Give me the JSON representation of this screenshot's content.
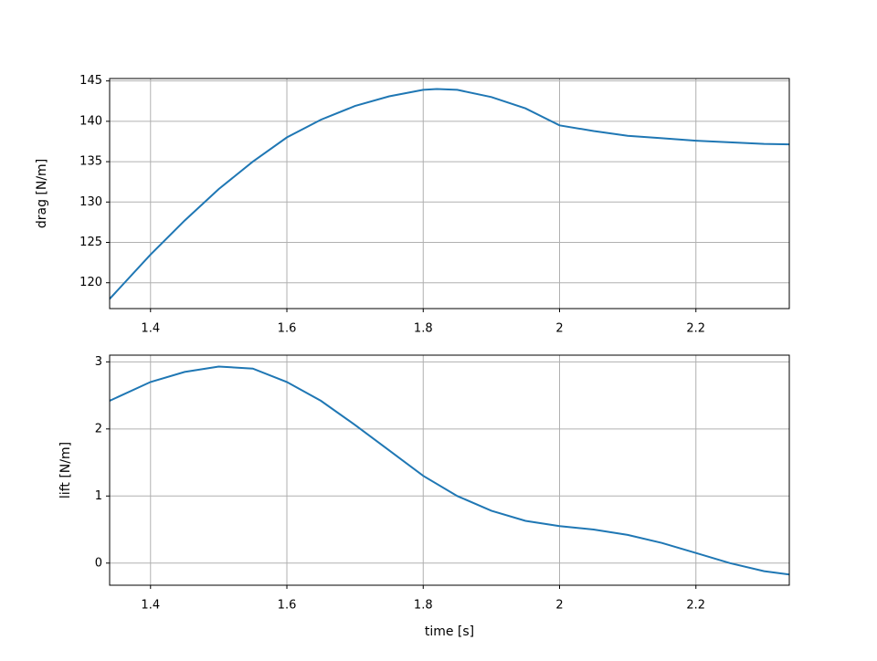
{
  "chart_data": [
    {
      "type": "line",
      "y_label": "drag [N/m]",
      "x": [
        1.34,
        1.4,
        1.45,
        1.5,
        1.55,
        1.6,
        1.65,
        1.7,
        1.75,
        1.8,
        1.82,
        1.85,
        1.9,
        1.95,
        2.0,
        2.05,
        2.1,
        2.15,
        2.2,
        2.25,
        2.3,
        2.337
      ],
      "series": [
        {
          "color": "#1f77b4",
          "values": [
            118,
            123.5,
            127.7,
            131.6,
            135,
            138,
            140.2,
            141.9,
            143.1,
            143.9,
            144,
            143.9,
            143,
            141.6,
            139.5,
            138.8,
            138.2,
            137.9,
            137.6,
            137.4,
            137.2,
            137.15
          ]
        }
      ],
      "xlim": [
        1.34,
        2.337
      ],
      "xticks": [
        1.4,
        1.6,
        1.8,
        2.0,
        2.2
      ],
      "ylim": [
        116.8,
        145.3
      ],
      "yticks": [
        120,
        125,
        130,
        135,
        140,
        145
      ],
      "grid": true
    },
    {
      "type": "line",
      "x_label": "time [s]",
      "y_label": "lift [N/m]",
      "x": [
        1.34,
        1.4,
        1.45,
        1.5,
        1.55,
        1.6,
        1.65,
        1.7,
        1.75,
        1.8,
        1.85,
        1.9,
        1.95,
        2.0,
        2.05,
        2.1,
        2.15,
        2.2,
        2.25,
        2.3,
        2.337
      ],
      "series": [
        {
          "color": "#1f77b4",
          "values": [
            2.42,
            2.7,
            2.85,
            2.93,
            2.9,
            2.7,
            2.42,
            2.06,
            1.68,
            1.3,
            1.0,
            0.78,
            0.63,
            0.55,
            0.5,
            0.42,
            0.3,
            0.15,
            0.0,
            -0.12,
            -0.17
          ]
        }
      ],
      "xlim": [
        1.34,
        2.337
      ],
      "xticks": [
        1.4,
        1.6,
        1.8,
        2.0,
        2.2
      ],
      "ylim": [
        -0.33,
        3.1
      ],
      "yticks": [
        0,
        1,
        2,
        3
      ],
      "grid": true
    }
  ]
}
